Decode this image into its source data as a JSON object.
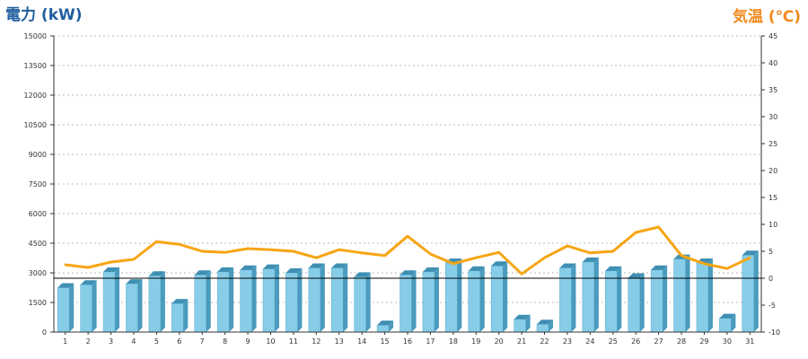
{
  "chart_data": {
    "type": "bar",
    "title": "",
    "left_axis": {
      "label": "電力 (kW)",
      "ylim": [
        0,
        15000
      ],
      "ticks": [
        0,
        1500,
        3000,
        4500,
        6000,
        7500,
        9000,
        10500,
        12000,
        13500,
        15000
      ]
    },
    "right_axis": {
      "label": "気温 (℃)",
      "ylim": [
        -10,
        45
      ],
      "ticks": [
        -10,
        -5,
        0,
        5,
        10,
        15,
        20,
        25,
        30,
        35,
        40,
        45
      ]
    },
    "categories": [
      "1",
      "2",
      "3",
      "4",
      "5",
      "6",
      "7",
      "8",
      "9",
      "10",
      "11",
      "12",
      "13",
      "14",
      "15",
      "16",
      "17",
      "18",
      "19",
      "20",
      "21",
      "22",
      "23",
      "24",
      "25",
      "26",
      "27",
      "28",
      "29",
      "30",
      "31"
    ],
    "series": [
      {
        "type": "bar",
        "axis": "left",
        "color": "#87cde8",
        "values": [
          2250,
          2400,
          3050,
          2450,
          2850,
          1450,
          2900,
          3050,
          3150,
          3200,
          3000,
          3250,
          3250,
          2800,
          350,
          2900,
          3050,
          3500,
          3100,
          3350,
          650,
          400,
          3250,
          3550,
          3100,
          2750,
          3150,
          3700,
          3500,
          700,
          3900
        ]
      },
      {
        "type": "line",
        "axis": "right",
        "color": "#f7a514",
        "values": [
          2.5,
          2.0,
          3.0,
          3.5,
          6.8,
          6.3,
          5.0,
          4.8,
          5.5,
          5.3,
          5.0,
          3.8,
          5.3,
          4.7,
          4.2,
          7.8,
          4.5,
          2.7,
          3.8,
          4.8,
          0.8,
          3.8,
          6.0,
          4.7,
          5.0,
          8.5,
          9.5,
          4.2,
          2.7,
          1.8,
          3.8
        ]
      }
    ],
    "reference_line": {
      "axis": "right",
      "value": 0,
      "color": "#000000"
    },
    "grid": true,
    "colors": {
      "left_label": "#1f5e9e",
      "right_label": "#f08a1e",
      "grid": "#bbbbbb"
    }
  }
}
